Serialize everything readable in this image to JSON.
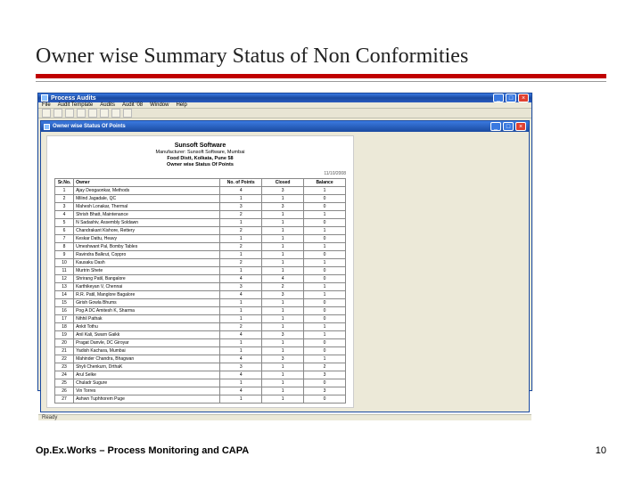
{
  "slide": {
    "title": "Owner wise Summary Status of Non Conformities",
    "footer_left": "Op.Ex.Works – Process Monitoring and CAPA",
    "page_number": "10",
    "title_rule_color": "#c00000"
  },
  "app": {
    "window_title": "Process Audits",
    "menubar": [
      "File",
      "Audit Template",
      "Audits",
      "Audit '08",
      "Window",
      "Help"
    ],
    "toolbar_button_count": 8,
    "subwindow_title": "Owner wise Status Of Points",
    "statusbar_text": "Ready",
    "window_controls": {
      "min": "_",
      "max": "□",
      "close": "×"
    },
    "colors": {
      "titlebar_gradient_top": "#3a79e0",
      "titlebar_gradient_bottom": "#1a4aa0",
      "close_button": "#e04030",
      "chrome_bg": "#ece9d8"
    }
  },
  "report": {
    "company": "Sunsoft Software",
    "subtitle1": "Manufacturer: Sunsoft Software, Mumbai",
    "subtitle2": "Food Distt, Kolkata, Pune 58",
    "report_title": "Owner wise Status Of Points",
    "date_text": "11/10/2008",
    "columns": [
      "Sr.No.",
      "Owner",
      "No. of Points",
      "Closed",
      "Balance"
    ],
    "rows": [
      [
        "1",
        "Ajay Deogaonkar, Methods",
        "4",
        "3",
        "1"
      ],
      [
        "2",
        "Milind Jagadale, QC",
        "1",
        "1",
        "0"
      ],
      [
        "3",
        "Mahesh Lonakar, Thermal",
        "3",
        "3",
        "0"
      ],
      [
        "4",
        "Shrish Bhatt, Maintenance",
        "2",
        "1",
        "1"
      ],
      [
        "5",
        "N Sadashiv, Assembly Soldawn",
        "1",
        "1",
        "0"
      ],
      [
        "6",
        "Chandrakant Kishore, Rettery",
        "2",
        "1",
        "1"
      ],
      [
        "7",
        "Keskar Dattu, Heavy",
        "1",
        "1",
        "0"
      ],
      [
        "8",
        "Umeshwant Pal, Bomby Tables",
        "2",
        "1",
        "1"
      ],
      [
        "9",
        "Ravindra Balkrut, Coppro",
        "1",
        "1",
        "0"
      ],
      [
        "10",
        "Kausaku Dash",
        "2",
        "1",
        "1"
      ],
      [
        "11",
        "Murtrin Shete",
        "1",
        "1",
        "0"
      ],
      [
        "12",
        "Shrirang Patil, Bangalore",
        "4",
        "4",
        "0"
      ],
      [
        "13",
        "Karthikeyan V, Chennai",
        "3",
        "2",
        "1"
      ],
      [
        "14",
        "R.R. Patil, Manglore Bagalore",
        "4",
        "3",
        "1"
      ],
      [
        "15",
        "Girish Gowla Bhums",
        "1",
        "1",
        "0"
      ],
      [
        "16",
        "Pog A DC Amitesh K, Sharma",
        "1",
        "1",
        "0"
      ],
      [
        "17",
        "Nihhil Pathak",
        "1",
        "1",
        "0"
      ],
      [
        "18",
        "Ankit Tothu",
        "2",
        "1",
        "1"
      ],
      [
        "19",
        "Anil Kali, Swarn Gaikk",
        "4",
        "3",
        "1"
      ],
      [
        "20",
        "Pragat Danvle, DC Giroyar",
        "1",
        "1",
        "0"
      ],
      [
        "21",
        "Yadish Kachara, Mumbai",
        "1",
        "1",
        "0"
      ],
      [
        "22",
        "Mahinder Chandra, Bhagwan",
        "4",
        "3",
        "1"
      ],
      [
        "23",
        "Shyli Chenkurn, DrthaK",
        "3",
        "1",
        "2"
      ],
      [
        "24",
        "Arul Selke",
        "4",
        "1",
        "3"
      ],
      [
        "25",
        "Chuladr Sugure",
        "1",
        "1",
        "0"
      ],
      [
        "26",
        "Vin Torres",
        "4",
        "1",
        "3"
      ],
      [
        "27",
        "Ashwn Tuphhorem Puge",
        "1",
        "1",
        "0"
      ]
    ]
  }
}
